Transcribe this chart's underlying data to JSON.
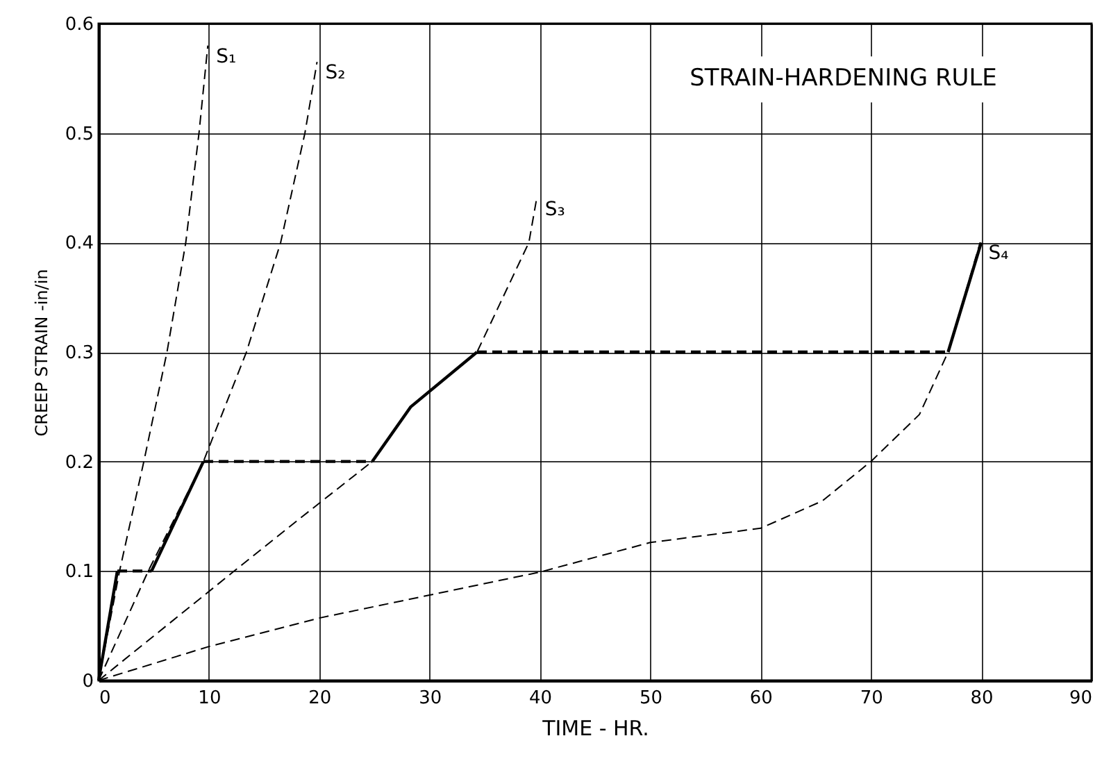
{
  "chart_data": {
    "type": "line",
    "title": "STRAIN-HARDENING RULE",
    "xlabel": "TIME - HR.",
    "ylabel": "CREEP STRAIN -in/in",
    "xlim": [
      0,
      90
    ],
    "xticks": [
      0,
      10,
      20,
      30,
      40,
      50,
      60,
      70,
      80,
      90
    ],
    "ylim": [
      0,
      0.6
    ],
    "yticks": [
      0,
      0.1,
      0.2,
      0.3,
      0.4,
      0.5,
      0.6
    ],
    "grid": true,
    "series": [
      {
        "name": "S₁",
        "color": "#000000",
        "line_style": "dashed",
        "x": [
          0,
          1.9,
          4.1,
          6.2,
          7.9,
          9.1,
          9.9
        ],
        "values": [
          0,
          0.1,
          0.2,
          0.3,
          0.4,
          0.5,
          0.58
        ]
      },
      {
        "name": "S₂",
        "color": "#000000",
        "line_style": "dashed",
        "x": [
          0,
          4.5,
          9.5,
          13.4,
          16.5,
          18.7,
          19.8
        ],
        "values": [
          0,
          0.1,
          0.2,
          0.3,
          0.4,
          0.5,
          0.565
        ]
      },
      {
        "name": "S₃",
        "color": "#000000",
        "line_style": "dashed",
        "x": [
          0,
          12.3,
          18.5,
          24.8,
          28.3,
          34.3,
          39,
          39.7
        ],
        "values": [
          0,
          0.1,
          0.15,
          0.2,
          0.25,
          0.3,
          0.4,
          0.44
        ]
      },
      {
        "name": "S₄",
        "color": "#000000",
        "line_style": "dashed",
        "x": [
          0,
          10,
          20,
          30,
          40,
          50,
          60,
          65.6,
          70,
          74.4,
          77,
          79.9
        ],
        "values": [
          0,
          0.031,
          0.057,
          0.078,
          0.099,
          0.126,
          0.139,
          0.164,
          0.2,
          0.243,
          0.3,
          0.4
        ]
      },
      {
        "color": "#000000",
        "line_style": "solid",
        "x": [
          0,
          1.7
        ],
        "values": [
          0,
          0.1
        ]
      },
      {
        "color": "#000000",
        "line_style": "dashed",
        "x": [
          1.7,
          4.8
        ],
        "values": [
          0.1,
          0.1
        ]
      },
      {
        "color": "#000000",
        "line_style": "solid",
        "x": [
          4.8,
          9.5
        ],
        "values": [
          0.1,
          0.2
        ]
      },
      {
        "color": "#000000",
        "line_style": "dashed",
        "x": [
          9.5,
          24.8
        ],
        "values": [
          0.2,
          0.2
        ]
      },
      {
        "color": "#000000",
        "line_style": "solid",
        "x": [
          24.8,
          28.3,
          34.3
        ],
        "values": [
          0.2,
          0.25,
          0.3
        ]
      },
      {
        "color": "#000000",
        "line_style": "dashed",
        "x": [
          34.3,
          77
        ],
        "values": [
          0.3,
          0.3
        ]
      },
      {
        "color": "#000000",
        "line_style": "solid",
        "x": [
          77,
          80
        ],
        "values": [
          0.3,
          0.4
        ]
      }
    ]
  }
}
